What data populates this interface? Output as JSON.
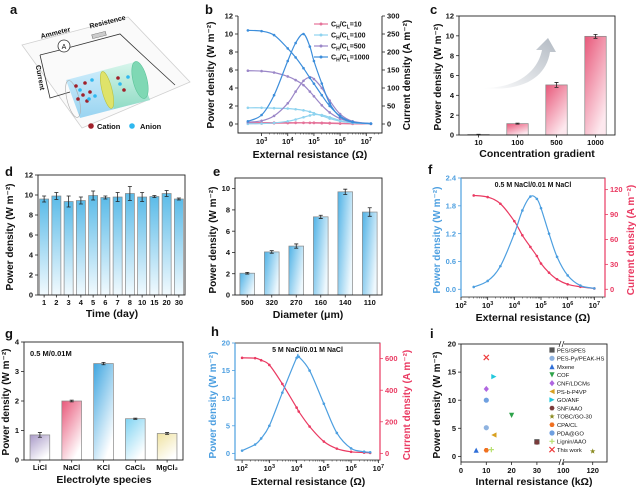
{
  "panel_letters": [
    "a",
    "b",
    "c",
    "d",
    "e",
    "f",
    "g",
    "h",
    "i"
  ],
  "schematic": {
    "labels": {
      "ammeter": "Ammeter",
      "resistance": "Resistence",
      "current": "Current",
      "ammeter_symbol": "A"
    },
    "legend": [
      {
        "label": "Cation",
        "color": "#a0202a"
      },
      {
        "label": "Anion",
        "color": "#2fb8ef"
      }
    ]
  },
  "chart_data": [
    {
      "panel": "b",
      "type": "line",
      "xlabel": "External resistance (Ω)",
      "ylabel": "Power density (W m⁻²)",
      "ylabel_right": "Current density (A m⁻²)",
      "xscale": "log",
      "xlim_exp": [
        2.1,
        7.6
      ],
      "xticks_exp": [
        3,
        4,
        5,
        6,
        7
      ],
      "ylim": [
        -1,
        12
      ],
      "yticks": [
        0,
        2,
        4,
        6,
        8,
        10,
        12
      ],
      "ylim_right": [
        -25,
        300
      ],
      "yticks_right": [
        0,
        50,
        100,
        150,
        200,
        250,
        300
      ],
      "legend_position": "top-right",
      "x": [
        300,
        1000,
        3000,
        10000,
        20000,
        40000,
        70000,
        100000,
        200000,
        400000,
        1000000,
        3000000,
        15000000
      ],
      "series": [
        {
          "name": "CH/CL=10",
          "color": "#e5739a",
          "power": [
            0.05,
            0.06,
            0.08,
            0.1,
            0.12,
            0.13,
            0.14,
            0.15,
            0.14,
            0.12,
            0.08,
            0.04,
            0.02
          ],
          "current": [
            4,
            4,
            4,
            3.8,
            3.6,
            3.3,
            3,
            2.8,
            2.2,
            1.6,
            1,
            0.5,
            0.2
          ]
        },
        {
          "name": "CH/CL=100",
          "color": "#8fd3ef",
          "power": [
            0.02,
            0.05,
            0.12,
            0.3,
            0.5,
            0.75,
            0.95,
            1.05,
            1.0,
            0.75,
            0.4,
            0.12,
            0.03
          ],
          "current": [
            45,
            45,
            44,
            43,
            41,
            38,
            34,
            30,
            23,
            15,
            8,
            3,
            1
          ]
        },
        {
          "name": "CH/CL=500",
          "color": "#9b87c8",
          "power": [
            0.2,
            0.35,
            0.9,
            2.3,
            3.6,
            4.8,
            5.2,
            5.0,
            4.0,
            2.6,
            1.1,
            0.3,
            0.05
          ],
          "current": [
            148,
            147,
            143,
            132,
            122,
            108,
            90,
            77,
            52,
            32,
            15,
            5,
            1
          ]
        },
        {
          "name": "CH/CL=1000",
          "color": "#3d8edb",
          "power": [
            0.3,
            1.0,
            3.2,
            7.0,
            9.0,
            10.0,
            8.6,
            7.0,
            4.5,
            2.3,
            0.8,
            0.2,
            0.05
          ],
          "current": [
            260,
            258,
            247,
            210,
            185,
            155,
            128,
            112,
            80,
            50,
            22,
            6,
            1
          ]
        }
      ]
    },
    {
      "panel": "c",
      "type": "bar",
      "xlabel": "Concentration gradient",
      "ylabel": "Power density (W m⁻²)",
      "ylim": [
        0,
        12
      ],
      "yticks": [
        0,
        2,
        4,
        6,
        8,
        10,
        12
      ],
      "categories": [
        "10",
        "100",
        "500",
        "1000"
      ],
      "values": [
        0.05,
        1.15,
        5.05,
        9.95
      ],
      "errors": [
        0.02,
        0.05,
        0.25,
        0.2
      ],
      "color": "#e8587a",
      "decoration": "curved-arrow-up"
    },
    {
      "panel": "d",
      "type": "bar",
      "xlabel": "Time (day)",
      "ylabel": "Power density (W m⁻²)",
      "ylim": [
        0,
        12
      ],
      "yticks": [
        0,
        2,
        4,
        6,
        8,
        10,
        12
      ],
      "categories": [
        "1",
        "2",
        "3",
        "4",
        "5",
        "6",
        "7",
        "8",
        "10",
        "15",
        "20",
        "30"
      ],
      "values": [
        9.6,
        9.9,
        9.35,
        9.45,
        9.95,
        9.75,
        9.8,
        10.15,
        9.8,
        9.85,
        10.15,
        9.6
      ],
      "errors": [
        0.3,
        0.35,
        0.55,
        0.35,
        0.45,
        0.15,
        0.45,
        0.7,
        0.45,
        0.1,
        0.3,
        0.1
      ],
      "color": "#5bbbe8"
    },
    {
      "panel": "e",
      "type": "bar",
      "xlabel": "Diameter (μm)",
      "ylabel": "Power density (W m⁻²)",
      "ylim": [
        0,
        11
      ],
      "yticks": [
        0,
        2,
        4,
        6,
        8,
        10
      ],
      "categories": [
        "500",
        "320",
        "270",
        "160",
        "140",
        "110"
      ],
      "values": [
        2.05,
        4.05,
        4.6,
        7.35,
        9.7,
        7.8
      ],
      "errors": [
        0.08,
        0.12,
        0.2,
        0.15,
        0.25,
        0.4
      ],
      "color": "#4fb2e6"
    },
    {
      "panel": "f",
      "type": "line",
      "annotation": "0.5 M NaCl/0.01 M NaCl",
      "xlabel": "External resistance (Ω)",
      "ylabel": "Power density (W m⁻²)",
      "ylabel_right": "Current density (A m⁻²)",
      "xscale": "log",
      "xlim_exp": [
        2,
        7.4
      ],
      "xticks_exp": [
        2,
        3,
        4,
        5,
        6,
        7
      ],
      "ylim": [
        -0.166,
        2.4
      ],
      "yticks": [
        0.0,
        0.6,
        1.2,
        1.8,
        2.4
      ],
      "ytick_labels": [
        "0.0",
        "0.6",
        "1.2",
        "1.8",
        "2.4"
      ],
      "ylim_right": [
        -9.3,
        134
      ],
      "yticks_right": [
        0,
        30,
        60,
        90,
        120
      ],
      "x": [
        300,
        1000,
        3000,
        10000,
        20000,
        40000,
        70000,
        100000,
        200000,
        400000,
        1000000,
        3000000,
        10000000
      ],
      "power": [
        0.05,
        0.18,
        0.5,
        1.2,
        1.7,
        2.0,
        1.95,
        1.75,
        1.2,
        0.7,
        0.3,
        0.08,
        0.02
      ],
      "current": [
        113,
        111,
        103,
        82,
        65,
        51,
        40,
        31,
        20,
        12,
        6,
        3,
        1
      ],
      "power_color": "#4d9fe0",
      "current_color": "#ea3a62"
    },
    {
      "panel": "g",
      "type": "bar",
      "annotation": "0.5 M/0.01M",
      "xlabel": "Electrolyte species",
      "ylabel": "Power density (W m⁻²)",
      "ylim": [
        0,
        4
      ],
      "yticks": [
        0,
        1,
        2,
        3,
        4
      ],
      "categories": [
        "LiCl",
        "NaCl",
        "KCl",
        "CaCl₂",
        "MgCl₂"
      ],
      "values": [
        0.85,
        2.0,
        3.27,
        1.4,
        0.9
      ],
      "errors": [
        0.08,
        0.03,
        0.04,
        0.02,
        0.03
      ],
      "colors": [
        "#a99ac8",
        "#e8587a",
        "#3fa6e0",
        "#7fd3f2",
        "#efe2a0"
      ]
    },
    {
      "panel": "h",
      "type": "line",
      "annotation": "5 M NaCl/0.01 M NaCl",
      "xlabel": "External resistance (Ω)",
      "ylabel": "Power density (W m⁻²)",
      "ylabel_right": "Current density (A m⁻²)",
      "xscale": "log",
      "xlim_exp": [
        1.74,
        7.06
      ],
      "xticks_exp": [
        2,
        3,
        4,
        5,
        6,
        7
      ],
      "ylim": [
        -1.2,
        20
      ],
      "yticks": [
        0,
        5,
        10,
        15,
        20
      ],
      "ylim_right": [
        -42,
        699
      ],
      "yticks_right": [
        0,
        200,
        400,
        600
      ],
      "x": [
        100,
        300,
        500,
        1000,
        3000,
        10000,
        12000,
        30000,
        100000,
        300000,
        1000000,
        3000000,
        5000000
      ],
      "power": [
        0.5,
        1.6,
        2.7,
        5,
        11,
        17.3,
        17.5,
        15,
        9,
        3.7,
        0.9,
        0.3,
        0.2
      ],
      "current": [
        605,
        603,
        590,
        560,
        440,
        290,
        265,
        170,
        75,
        30,
        10,
        5,
        3
      ],
      "power_color": "#4d9fe0",
      "current_color": "#ea3a62"
    },
    {
      "panel": "i",
      "type": "scatter",
      "xlabel": "Internal resistance (kΩ)",
      "ylabel": "Power density (W m⁻²)",
      "x_axis_break": [
        30,
        100
      ],
      "xticks": [
        0,
        10,
        20,
        30,
        100,
        120
      ],
      "ylim": [
        -1,
        20
      ],
      "yticks": [
        0,
        5,
        10,
        15,
        20
      ],
      "legend_position": "right",
      "points": [
        {
          "name": "PES/SPES",
          "x": 30,
          "y": 2.6,
          "color": "#555555",
          "marker": "square"
        },
        {
          "name": "PES-Py/PEAK-HS",
          "x": 10,
          "y": 5.1,
          "color": "#8fb3e0",
          "marker": "circle"
        },
        {
          "name": "Mxene",
          "x": 6,
          "y": 1.1,
          "color": "#2f6fd8",
          "marker": "triangle-up"
        },
        {
          "name": "COF",
          "x": 20,
          "y": 7.3,
          "color": "#2ea34a",
          "marker": "triangle-down"
        },
        {
          "name": "CNF/LDCMs",
          "x": 10,
          "y": 12.0,
          "color": "#b066e0",
          "marker": "diamond"
        },
        {
          "name": "PS-b-P4VP",
          "x": 13,
          "y": 3.8,
          "color": "#d8a020",
          "marker": "triangle-left"
        },
        {
          "name": "GO/ANF",
          "x": 13,
          "y": 14.2,
          "color": "#22c8dc",
          "marker": "triangle-right"
        },
        {
          "name": "SNF/AAO",
          "x": 30,
          "y": 2.5,
          "color": "#7a3b3b",
          "marker": "hexagon"
        },
        {
          "name": "TOBC/GO-30",
          "x": 120,
          "y": 0.9,
          "color": "#8a8a20",
          "marker": "star"
        },
        {
          "name": "CPA/CL",
          "x": 10,
          "y": 1.1,
          "color": "#f07020",
          "marker": "hexagon"
        },
        {
          "name": "PDA@GO",
          "x": 10,
          "y": 10.0,
          "color": "#6fa0e0",
          "marker": "circle"
        },
        {
          "name": "Lignin/AAO",
          "x": 12,
          "y": 1.2,
          "color": "#b8e070",
          "marker": "plus"
        },
        {
          "name": "This work",
          "x": 10,
          "y": 17.6,
          "color": "#ee3a3a",
          "marker": "x"
        }
      ]
    }
  ]
}
